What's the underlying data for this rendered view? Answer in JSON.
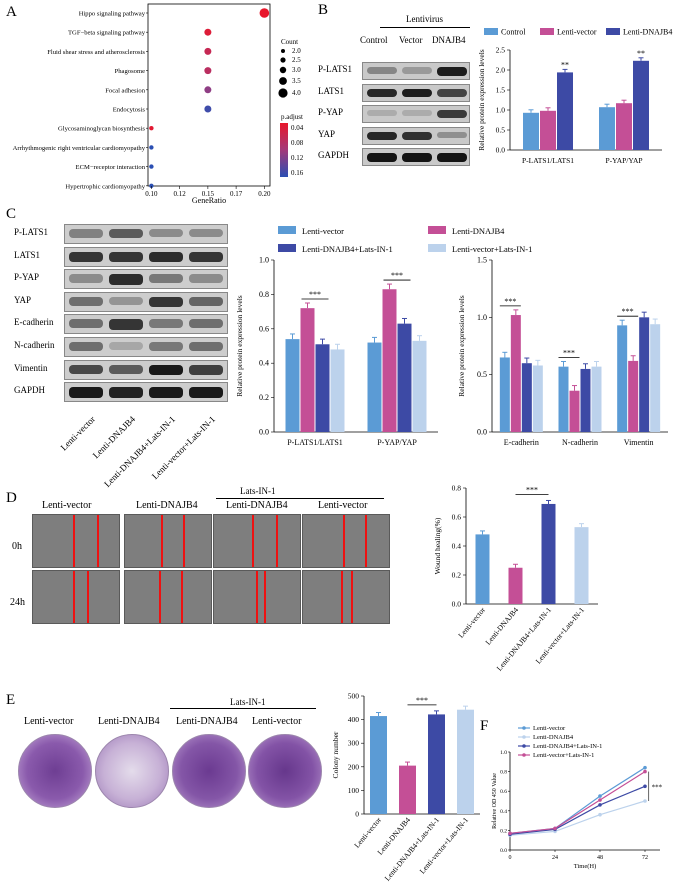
{
  "panels": {
    "A": "A",
    "B": "B",
    "C": "C",
    "D": "D",
    "E": "E",
    "F": "F"
  },
  "colors": {
    "blue": "#5b9bd5",
    "pink": "#c44f96",
    "navy": "#3d4aa5",
    "pale": "#bcd2ec"
  },
  "panelA": {
    "xlabel": "GeneRatio",
    "xticks": [
      "0.10",
      "0.12",
      "0.15",
      "0.17",
      "0.20"
    ],
    "count_title": "Count",
    "count_legend": [
      "2.0",
      "2.5",
      "3.0",
      "3.5",
      "4.0"
    ],
    "padj_title": "p.adjust",
    "padj_ticks": [
      "0.04",
      "0.08",
      "0.12",
      "0.16"
    ]
  },
  "chart_data": [
    {
      "type": "scatter",
      "panel": "A",
      "title": "",
      "xlabel": "GeneRatio",
      "ylabel": "",
      "xlim": [
        0.097,
        0.205
      ],
      "categories": [
        "Hippo signaling pathway",
        "TGF−beta signaling pathway",
        "Fluid shear stress and atherosclerosis",
        "Phagosome",
        "Focal adhesion",
        "Endocytosis",
        "Glycosaminoglycan biosynthesis",
        "Arrhythmogenic right ventricular cardiomyopathy",
        "ECM−receptor interaction",
        "Hypertrophic cardiomyopathy"
      ],
      "x": [
        0.2,
        0.15,
        0.15,
        0.15,
        0.15,
        0.15,
        0.1,
        0.1,
        0.1,
        0.1
      ],
      "count": [
        4,
        3,
        3,
        3,
        3,
        3,
        2,
        2,
        2,
        2
      ],
      "p_adjust": [
        0.04,
        0.05,
        0.07,
        0.08,
        0.11,
        0.15,
        0.045,
        0.16,
        0.16,
        0.16
      ]
    },
    {
      "type": "bar",
      "panel": "B",
      "ylabel": "Relative protein expression levels",
      "ylim": [
        0,
        2.5
      ],
      "yticks": [
        "0.0",
        "0.5",
        "1.0",
        "1.5",
        "2.0",
        "2.5"
      ],
      "categories": [
        "P-LATS1/LATS1",
        "P-YAP/YAP"
      ],
      "series": [
        {
          "name": "Control",
          "values": [
            0.93,
            1.07
          ]
        },
        {
          "name": "Lenti-vector",
          "values": [
            0.98,
            1.17
          ]
        },
        {
          "name": "Lenti-DNAJB4",
          "values": [
            1.94,
            2.23
          ]
        }
      ],
      "annotations": [
        "**",
        "**"
      ]
    },
    {
      "type": "bar",
      "panel": "C1",
      "ylabel": "Relative protein expression levels",
      "ylim": [
        0,
        1.0
      ],
      "yticks": [
        "0.0",
        "0.2",
        "0.4",
        "0.6",
        "0.8",
        "1.0"
      ],
      "categories": [
        "P-LATS1/LATS1",
        "P-YAP/YAP"
      ],
      "series": [
        {
          "name": "Lenti-vector",
          "values": [
            0.54,
            0.52
          ]
        },
        {
          "name": "Lenti-DNAJB4",
          "values": [
            0.72,
            0.83
          ]
        },
        {
          "name": "Lenti-DNAJB4+Lats-IN-1",
          "values": [
            0.51,
            0.63
          ]
        },
        {
          "name": "Lenti-vector+Lats-IN-1",
          "values": [
            0.48,
            0.53
          ]
        }
      ],
      "annotations": [
        "***",
        "***"
      ]
    },
    {
      "type": "bar",
      "panel": "C2",
      "ylabel": "Relative protein expression levels",
      "ylim": [
        0,
        1.5
      ],
      "yticks": [
        "0.0",
        "0.5",
        "1.0",
        "1.5"
      ],
      "categories": [
        "E-cadherin",
        "N-cadherin",
        "Vimentin"
      ],
      "series": [
        {
          "name": "Lenti-vector",
          "values": [
            0.65,
            0.57,
            0.93
          ]
        },
        {
          "name": "Lenti-DNAJB4",
          "values": [
            1.02,
            0.36,
            0.62
          ]
        },
        {
          "name": "Lenti-DNAJB4+Lats-IN-1",
          "values": [
            0.6,
            0.55,
            1.0
          ]
        },
        {
          "name": "Lenti-vector+Lats-IN-1",
          "values": [
            0.58,
            0.57,
            0.94
          ]
        }
      ],
      "annotations": [
        "***",
        "***",
        "***"
      ]
    },
    {
      "type": "bar",
      "panel": "D",
      "ylabel": "Wound healing(%)",
      "ylim": [
        0,
        0.8
      ],
      "yticks": [
        "0.0",
        "0.2",
        "0.4",
        "0.6",
        "0.8"
      ],
      "categories": [
        "Lenti-vector",
        "Lenti-DNAJB4",
        "Lenti-DNAJB4+Lats-IN-1",
        "Lenti-vector+Lats-IN-1"
      ],
      "values": [
        0.48,
        0.25,
        0.69,
        0.53
      ],
      "annotations": [
        "***"
      ]
    },
    {
      "type": "bar",
      "panel": "E",
      "ylabel": "Colony number",
      "ylim": [
        0,
        500
      ],
      "yticks": [
        "0",
        "100",
        "200",
        "300",
        "400",
        "500"
      ],
      "categories": [
        "Lenti-vector",
        "Lenti-DNAJB4",
        "Lenti-DNAJB4+Lats-IN-1",
        "Lenti-vector+Lats-IN-1"
      ],
      "values": [
        415,
        205,
        422,
        442
      ],
      "annotations": [
        "***"
      ]
    },
    {
      "type": "line",
      "panel": "F",
      "xlabel": "Time(H)",
      "ylabel": "Relative OD 450  Value",
      "xlim": [
        0,
        80
      ],
      "ylim": [
        0,
        1.0
      ],
      "xticks": [
        "0",
        "24",
        "48",
        "72"
      ],
      "yticks": [
        "0.0",
        "0.2",
        "0.4",
        "0.6",
        "0.8",
        "1.0"
      ],
      "x": [
        0,
        24,
        48,
        72
      ],
      "series": [
        {
          "name": "Lenti-vector",
          "values": [
            0.17,
            0.22,
            0.55,
            0.84
          ]
        },
        {
          "name": "Lenti-DNAJB4",
          "values": [
            0.15,
            0.19,
            0.36,
            0.5
          ]
        },
        {
          "name": "Lenti-DNAJB4+Lats-IN-1",
          "values": [
            0.16,
            0.21,
            0.46,
            0.65
          ]
        },
        {
          "name": "Lenti-vector+Lats-IN-1",
          "values": [
            0.17,
            0.22,
            0.51,
            0.8
          ]
        }
      ],
      "annotations": [
        "***"
      ]
    }
  ],
  "panelB": {
    "group_label": "Lentivirus",
    "lanes": [
      "Control",
      "Vector",
      "DNAJB4"
    ],
    "rows": [
      "P-LATS1",
      "LATS1",
      "P-YAP",
      "YAP",
      "GAPDH"
    ],
    "legend": [
      "Control",
      "Lenti-vector",
      "Lenti-DNAJB4"
    ]
  },
  "panelC": {
    "rows": [
      "P-LATS1",
      "LATS1",
      "P-YAP",
      "YAP",
      "E-cadherin",
      "N-cadherin",
      "Vimentin",
      "GAPDH"
    ],
    "lanes": [
      "Lenti-vector",
      "Lenti-DNAJB4",
      "Lenti-DNAJB4+Lats-IN-1",
      "Lenti-vector+Lats-IN-1"
    ],
    "legend": [
      "Lenti-vector",
      "Lenti-DNAJB4",
      "Lenti-DNAJB4+Lats-IN-1",
      "Lenti-vector+Lats-IN-1"
    ]
  },
  "panelD": {
    "treatment_label": "Lats-IN-1",
    "columns": [
      "Lenti-vector",
      "Lenti-DNAJB4",
      "Lenti-DNAJB4",
      "Lenti-vector"
    ],
    "rows": [
      "0h",
      "24h"
    ],
    "bar_labels": [
      "Lenti-vector",
      "Lenti-DNAJB4",
      "Lenti-DNAJB4+Lats-IN-1",
      "Lenti-vector+Lats-IN-1"
    ]
  },
  "panelE": {
    "treatment_label": "Lats-IN-1",
    "columns": [
      "Lenti-vector",
      "Lenti-DNAJB4",
      "Lenti-DNAJB4",
      "Lenti-vector"
    ],
    "bar_labels": [
      "Lenti-vector",
      "Lenti-DNAJB4",
      "Lenti-DNAJB4+Lats-IN-1",
      "Lenti-vector+Lats-IN-1"
    ]
  },
  "panelF": {
    "legend": [
      "Lenti-vector",
      "Lenti-DNAJB4",
      "Lenti-DNAJB4+Lats-IN-1",
      "Lenti-vector+Lats-IN-1"
    ]
  }
}
